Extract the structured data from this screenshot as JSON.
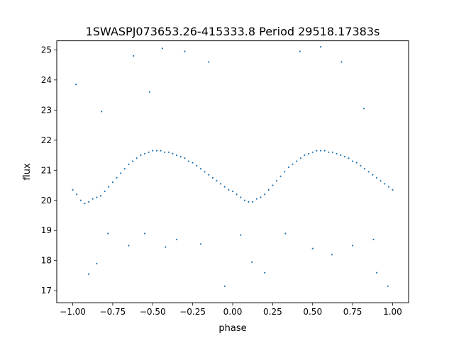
{
  "chart_data": {
    "type": "scatter",
    "title": "1SWASPJ073653.26-415333.8 Period 29518.17383s",
    "xlabel": "phase",
    "ylabel": "flux",
    "xlim": [
      -1.1,
      1.1
    ],
    "ylim": [
      16.6,
      25.3
    ],
    "xticks": [
      -1.0,
      -0.75,
      -0.5,
      -0.25,
      0.0,
      0.25,
      0.5,
      0.75,
      1.0
    ],
    "xtick_labels": [
      "−1.00",
      "−0.75",
      "−0.50",
      "−0.25",
      "0.00",
      "0.25",
      "0.50",
      "0.75",
      "1.00"
    ],
    "yticks": [
      17,
      18,
      19,
      20,
      21,
      22,
      23,
      24,
      25
    ],
    "ytick_labels": [
      "17",
      "18",
      "19",
      "20",
      "21",
      "22",
      "23",
      "24",
      "25"
    ],
    "grid": false,
    "legend": "none",
    "point_color": "#1f77b4",
    "series": [
      {
        "points": [
          [
            -1.0,
            20.35
          ],
          [
            -0.975,
            20.2
          ],
          [
            -0.95,
            20.0
          ],
          [
            -0.925,
            19.9
          ],
          [
            -0.9,
            19.95
          ],
          [
            -0.875,
            20.05
          ],
          [
            -0.85,
            20.1
          ],
          [
            -0.825,
            20.15
          ],
          [
            -0.8,
            20.3
          ],
          [
            -0.775,
            20.45
          ],
          [
            -0.75,
            20.6
          ],
          [
            -0.725,
            20.75
          ],
          [
            -0.7,
            20.9
          ],
          [
            -0.675,
            21.05
          ],
          [
            -0.65,
            21.2
          ],
          [
            -0.625,
            21.3
          ],
          [
            -0.6,
            21.4
          ],
          [
            -0.575,
            21.5
          ],
          [
            -0.55,
            21.55
          ],
          [
            -0.525,
            21.6
          ],
          [
            -0.5,
            21.65
          ],
          [
            -0.475,
            21.65
          ],
          [
            -0.45,
            21.65
          ],
          [
            -0.425,
            21.6
          ],
          [
            -0.4,
            21.6
          ],
          [
            -0.375,
            21.55
          ],
          [
            -0.35,
            21.5
          ],
          [
            -0.325,
            21.45
          ],
          [
            -0.3,
            21.4
          ],
          [
            -0.275,
            21.3
          ],
          [
            -0.25,
            21.25
          ],
          [
            -0.225,
            21.15
          ],
          [
            -0.2,
            21.05
          ],
          [
            -0.175,
            20.95
          ],
          [
            -0.15,
            20.85
          ],
          [
            -0.125,
            20.75
          ],
          [
            -0.1,
            20.65
          ],
          [
            -0.075,
            20.55
          ],
          [
            -0.05,
            20.45
          ],
          [
            -0.025,
            20.35
          ],
          [
            0.0,
            20.3
          ],
          [
            0.025,
            20.2
          ],
          [
            0.05,
            20.1
          ],
          [
            0.075,
            20.0
          ],
          [
            0.1,
            19.95
          ],
          [
            0.125,
            19.95
          ],
          [
            0.15,
            20.05
          ],
          [
            0.175,
            20.1
          ],
          [
            0.2,
            20.2
          ],
          [
            0.225,
            20.35
          ],
          [
            0.25,
            20.5
          ],
          [
            0.275,
            20.65
          ],
          [
            0.3,
            20.8
          ],
          [
            0.325,
            20.95
          ],
          [
            0.35,
            21.1
          ],
          [
            0.375,
            21.2
          ],
          [
            0.4,
            21.3
          ],
          [
            0.425,
            21.4
          ],
          [
            0.45,
            21.5
          ],
          [
            0.475,
            21.55
          ],
          [
            0.5,
            21.6
          ],
          [
            0.525,
            21.65
          ],
          [
            0.55,
            21.65
          ],
          [
            0.575,
            21.65
          ],
          [
            0.6,
            21.6
          ],
          [
            0.625,
            21.6
          ],
          [
            0.65,
            21.55
          ],
          [
            0.675,
            21.5
          ],
          [
            0.7,
            21.45
          ],
          [
            0.725,
            21.4
          ],
          [
            0.75,
            21.3
          ],
          [
            0.775,
            21.25
          ],
          [
            0.8,
            21.15
          ],
          [
            0.825,
            21.05
          ],
          [
            0.85,
            20.95
          ],
          [
            0.875,
            20.85
          ],
          [
            0.9,
            20.75
          ],
          [
            0.925,
            20.65
          ],
          [
            0.95,
            20.55
          ],
          [
            0.975,
            20.45
          ],
          [
            1.0,
            20.35
          ],
          [
            -0.98,
            23.85
          ],
          [
            -0.62,
            24.8
          ],
          [
            -0.52,
            23.6
          ],
          [
            -0.44,
            25.05
          ],
          [
            -0.3,
            24.95
          ],
          [
            -0.15,
            24.6
          ],
          [
            -0.82,
            22.95
          ],
          [
            -0.9,
            17.55
          ],
          [
            -0.85,
            17.9
          ],
          [
            -0.78,
            18.9
          ],
          [
            -0.65,
            18.5
          ],
          [
            -0.55,
            18.9
          ],
          [
            -0.42,
            18.45
          ],
          [
            -0.35,
            18.7
          ],
          [
            -0.2,
            18.55
          ],
          [
            -0.05,
            17.15
          ],
          [
            0.12,
            17.95
          ],
          [
            0.2,
            17.6
          ],
          [
            0.33,
            18.9
          ],
          [
            0.42,
            24.95
          ],
          [
            0.55,
            25.1
          ],
          [
            0.68,
            24.6
          ],
          [
            0.82,
            23.05
          ],
          [
            0.5,
            18.4
          ],
          [
            0.62,
            18.2
          ],
          [
            0.75,
            18.5
          ],
          [
            0.9,
            17.6
          ],
          [
            0.97,
            17.15
          ],
          [
            0.88,
            18.7
          ],
          [
            0.05,
            18.85
          ]
        ]
      }
    ]
  }
}
